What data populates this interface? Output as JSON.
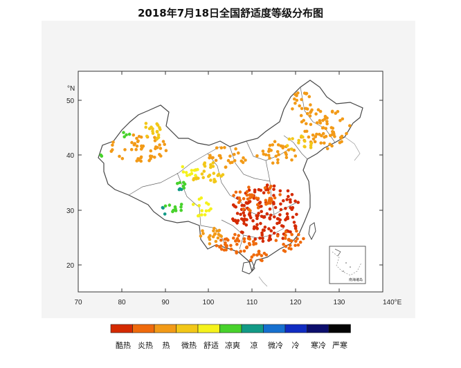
{
  "title": "2018年7月18日全国舒适度等级分布图",
  "map": {
    "x_tick_labels": [
      "70",
      "80",
      "90",
      "100",
      "110",
      "120",
      "130",
      "140°E"
    ],
    "y_tick_labels": [
      "°N",
      "50",
      "40",
      "30",
      "20"
    ],
    "inset_label": "南海诸岛"
  },
  "legend": {
    "items": [
      {
        "label": "酷热",
        "color": "#d42a00"
      },
      {
        "label": "炎热",
        "color": "#ef6a0c"
      },
      {
        "label": "热",
        "color": "#f29a17"
      },
      {
        "label": "微热",
        "color": "#f2c718"
      },
      {
        "label": "舒适",
        "color": "#f5f21c"
      },
      {
        "label": "凉爽",
        "color": "#48d22c"
      },
      {
        "label": "凉",
        "color": "#129a86"
      },
      {
        "label": "微冷",
        "color": "#1670cf"
      },
      {
        "label": "冷",
        "color": "#102cc2"
      },
      {
        "label": "寒冷",
        "color": "#0c0e6c"
      },
      {
        "label": "严寒",
        "color": "#040404"
      }
    ]
  }
}
